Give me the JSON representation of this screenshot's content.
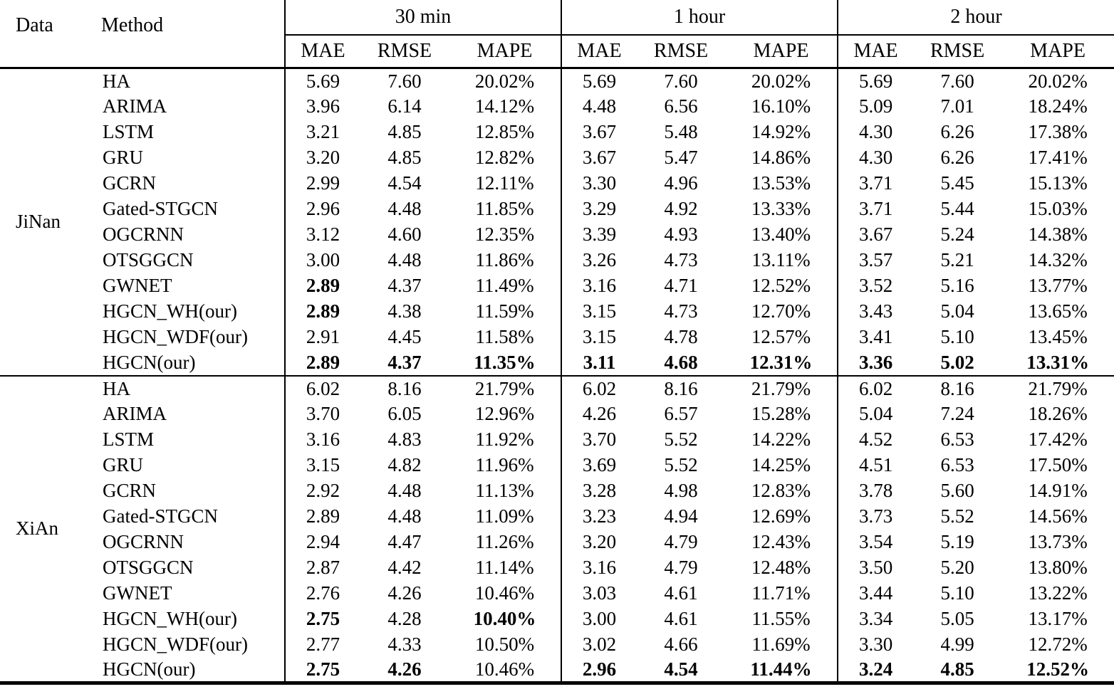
{
  "table": {
    "header": {
      "data_label": "Data",
      "method_label": "Method",
      "groups": [
        {
          "label": "30 min"
        },
        {
          "label": "1 hour"
        },
        {
          "label": "2 hour"
        }
      ],
      "metrics": [
        "MAE",
        "RMSE",
        "MAPE"
      ]
    },
    "sections": [
      {
        "data_label": "JiNan",
        "rows": [
          {
            "method": "HA",
            "values": [
              "5.69",
              "7.60",
              "20.02%",
              "5.69",
              "7.60",
              "20.02%",
              "5.69",
              "7.60",
              "20.02%"
            ],
            "bold": []
          },
          {
            "method": "ARIMA",
            "values": [
              "3.96",
              "6.14",
              "14.12%",
              "4.48",
              "6.56",
              "16.10%",
              "5.09",
              "7.01",
              "18.24%"
            ],
            "bold": []
          },
          {
            "method": "LSTM",
            "values": [
              "3.21",
              "4.85",
              "12.85%",
              "3.67",
              "5.48",
              "14.92%",
              "4.30",
              "6.26",
              "17.38%"
            ],
            "bold": []
          },
          {
            "method": "GRU",
            "values": [
              "3.20",
              "4.85",
              "12.82%",
              "3.67",
              "5.47",
              "14.86%",
              "4.30",
              "6.26",
              "17.41%"
            ],
            "bold": []
          },
          {
            "method": "GCRN",
            "values": [
              "2.99",
              "4.54",
              "12.11%",
              "3.30",
              "4.96",
              "13.53%",
              "3.71",
              "5.45",
              "15.13%"
            ],
            "bold": []
          },
          {
            "method": "Gated-STGCN",
            "values": [
              "2.96",
              "4.48",
              "11.85%",
              "3.29",
              "4.92",
              "13.33%",
              "3.71",
              "5.44",
              "15.03%"
            ],
            "bold": []
          },
          {
            "method": "OGCRNN",
            "values": [
              "3.12",
              "4.60",
              "12.35%",
              "3.39",
              "4.93",
              "13.40%",
              "3.67",
              "5.24",
              "14.38%"
            ],
            "bold": []
          },
          {
            "method": "OTSGGCN",
            "values": [
              "3.00",
              "4.48",
              "11.86%",
              "3.26",
              "4.73",
              "13.11%",
              "3.57",
              "5.21",
              "14.32%"
            ],
            "bold": []
          },
          {
            "method": "GWNET",
            "values": [
              "2.89",
              "4.37",
              "11.49%",
              "3.16",
              "4.71",
              "12.52%",
              "3.52",
              "5.16",
              "13.77%"
            ],
            "bold": [
              0
            ]
          },
          {
            "method": "HGCN_WH(our)",
            "values": [
              "2.89",
              "4.38",
              "11.59%",
              "3.15",
              "4.73",
              "12.70%",
              "3.43",
              "5.04",
              "13.65%"
            ],
            "bold": [
              0
            ]
          },
          {
            "method": "HGCN_WDF(our)",
            "values": [
              "2.91",
              "4.45",
              "11.58%",
              "3.15",
              "4.78",
              "12.57%",
              "3.41",
              "5.10",
              "13.45%"
            ],
            "bold": []
          },
          {
            "method": "HGCN(our)",
            "values": [
              "2.89",
              "4.37",
              "11.35%",
              "3.11",
              "4.68",
              "12.31%",
              "3.36",
              "5.02",
              "13.31%"
            ],
            "bold": [
              0,
              1,
              2,
              3,
              4,
              5,
              6,
              7,
              8
            ]
          }
        ]
      },
      {
        "data_label": "XiAn",
        "rows": [
          {
            "method": "HA",
            "values": [
              "6.02",
              "8.16",
              "21.79%",
              "6.02",
              "8.16",
              "21.79%",
              "6.02",
              "8.16",
              "21.79%"
            ],
            "bold": []
          },
          {
            "method": "ARIMA",
            "values": [
              "3.70",
              "6.05",
              "12.96%",
              "4.26",
              "6.57",
              "15.28%",
              "5.04",
              "7.24",
              "18.26%"
            ],
            "bold": []
          },
          {
            "method": "LSTM",
            "values": [
              "3.16",
              "4.83",
              "11.92%",
              "3.70",
              "5.52",
              "14.22%",
              "4.52",
              "6.53",
              "17.42%"
            ],
            "bold": []
          },
          {
            "method": "GRU",
            "values": [
              "3.15",
              "4.82",
              "11.96%",
              "3.69",
              "5.52",
              "14.25%",
              "4.51",
              "6.53",
              "17.50%"
            ],
            "bold": []
          },
          {
            "method": "GCRN",
            "values": [
              "2.92",
              "4.48",
              "11.13%",
              "3.28",
              "4.98",
              "12.83%",
              "3.78",
              "5.60",
              "14.91%"
            ],
            "bold": []
          },
          {
            "method": "Gated-STGCN",
            "values": [
              "2.89",
              "4.48",
              "11.09%",
              "3.23",
              "4.94",
              "12.69%",
              "3.73",
              "5.52",
              "14.56%"
            ],
            "bold": []
          },
          {
            "method": "OGCRNN",
            "values": [
              "2.94",
              "4.47",
              "11.26%",
              "3.20",
              "4.79",
              "12.43%",
              "3.54",
              "5.19",
              "13.73%"
            ],
            "bold": []
          },
          {
            "method": "OTSGGCN",
            "values": [
              "2.87",
              "4.42",
              "11.14%",
              "3.16",
              "4.79",
              "12.48%",
              "3.50",
              "5.20",
              "13.80%"
            ],
            "bold": []
          },
          {
            "method": "GWNET",
            "values": [
              "2.76",
              "4.26",
              "10.46%",
              "3.03",
              "4.61",
              "11.71%",
              "3.44",
              "5.10",
              "13.22%"
            ],
            "bold": []
          },
          {
            "method": "HGCN_WH(our)",
            "values": [
              "2.75",
              "4.28",
              "10.40%",
              "3.00",
              "4.61",
              "11.55%",
              "3.34",
              "5.05",
              "13.17%"
            ],
            "bold": [
              0,
              2
            ]
          },
          {
            "method": "HGCN_WDF(our)",
            "values": [
              "2.77",
              "4.33",
              "10.50%",
              "3.02",
              "4.66",
              "11.69%",
              "3.30",
              "4.99",
              "12.72%"
            ],
            "bold": []
          },
          {
            "method": "HGCN(our)",
            "values": [
              "2.75",
              "4.26",
              "10.46%",
              "2.96",
              "4.54",
              "11.44%",
              "3.24",
              "4.85",
              "12.52%"
            ],
            "bold": [
              0,
              1,
              3,
              4,
              5,
              6,
              7,
              8
            ]
          }
        ]
      }
    ]
  }
}
